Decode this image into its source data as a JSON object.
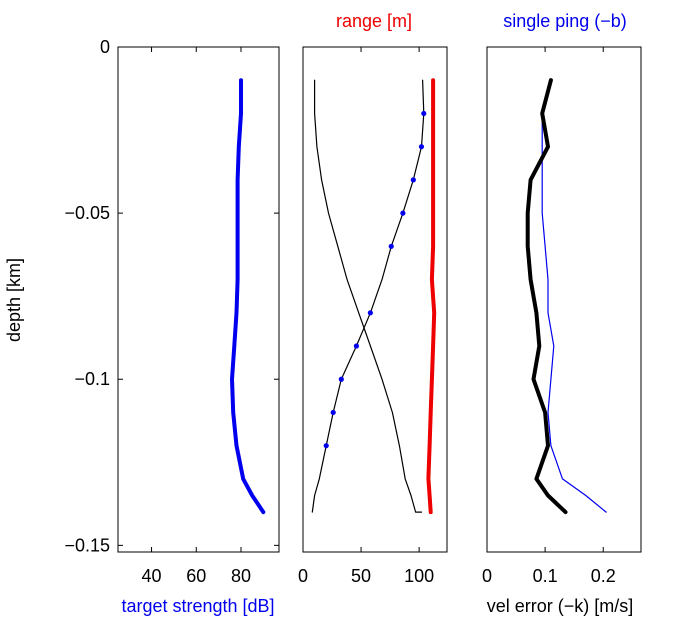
{
  "colors": {
    "blue": "#0000ee",
    "red": "#ee0000",
    "black": "#000000"
  },
  "chart_data": [
    {
      "type": "line",
      "panel": "left",
      "ylabel": "depth [km]",
      "xlabel": "target strength [dB]",
      "xlabel_color": "#0000ee",
      "xlim": [
        25,
        97
      ],
      "ylim": [
        -0.152,
        0
      ],
      "xticks": [
        "40",
        "60",
        "80"
      ],
      "xtick_values": [
        40,
        60,
        80
      ],
      "yticks": [
        "0",
        "−0.05",
        "−0.1",
        "−0.15"
      ],
      "ytick_values": [
        0,
        -0.05,
        -0.1,
        -0.15
      ],
      "series": [
        {
          "color": "#0000ee",
          "width": "thick",
          "x": [
            80,
            80,
            79,
            78.5,
            78.5,
            78.5,
            78.5,
            78,
            77,
            76,
            76.5,
            78,
            81,
            85,
            90
          ],
          "y": [
            -0.01,
            -0.02,
            -0.03,
            -0.04,
            -0.05,
            -0.06,
            -0.07,
            -0.08,
            -0.09,
            -0.1,
            -0.11,
            -0.12,
            -0.13,
            -0.135,
            -0.14
          ]
        }
      ]
    },
    {
      "type": "line",
      "panel": "middle",
      "title": "range [m]",
      "title_color": "#ee0000",
      "xlim": [
        0,
        124
      ],
      "ylim": [
        -0.152,
        0
      ],
      "xticks": [
        "0",
        "50",
        "100"
      ],
      "xtick_values": [
        0,
        50,
        100
      ],
      "series": [
        {
          "color": "#ee0000",
          "width": "thick",
          "x": [
            112,
            112,
            112,
            112,
            112,
            112,
            111,
            113,
            112,
            111,
            110,
            109,
            108,
            109,
            110
          ],
          "y": [
            -0.01,
            -0.02,
            -0.03,
            -0.04,
            -0.05,
            -0.06,
            -0.07,
            -0.08,
            -0.09,
            -0.1,
            -0.11,
            -0.12,
            -0.13,
            -0.135,
            -0.14
          ]
        },
        {
          "color": "#000000",
          "width": "thin",
          "x": [
            10,
            10,
            12,
            16,
            22,
            30,
            38,
            48,
            58,
            68,
            77,
            83,
            88,
            93,
            97,
            102
          ],
          "y": [
            -0.01,
            -0.02,
            -0.03,
            -0.04,
            -0.05,
            -0.06,
            -0.07,
            -0.08,
            -0.09,
            -0.1,
            -0.11,
            -0.12,
            -0.13,
            -0.135,
            -0.14,
            -0.14
          ]
        },
        {
          "color": "#000000",
          "width": "thin",
          "markers": true,
          "marker_color": "#0000ee",
          "x": [
            103,
            104,
            102,
            95,
            86,
            76,
            68,
            58,
            46,
            33,
            26,
            20,
            14,
            10,
            8,
            8
          ],
          "y": [
            -0.01,
            -0.02,
            -0.03,
            -0.04,
            -0.05,
            -0.06,
            -0.07,
            -0.08,
            -0.09,
            -0.1,
            -0.11,
            -0.12,
            -0.13,
            -0.135,
            -0.14,
            -0.14
          ],
          "marker_idx": [
            1,
            2,
            3,
            4,
            5,
            7,
            8,
            9,
            10,
            11
          ]
        }
      ]
    },
    {
      "type": "line",
      "panel": "right",
      "title": "single ping (−b)",
      "title_color": "#0000ee",
      "xlabel": "vel error (−k) [m/s]",
      "xlim": [
        0,
        0.265
      ],
      "ylim": [
        -0.152,
        0
      ],
      "xticks": [
        "0",
        "0.1",
        "0.2"
      ],
      "xtick_values": [
        0,
        0.1,
        0.2
      ],
      "series": [
        {
          "color": "#0000ee",
          "width": "thin",
          "x": [
            0.11,
            0.095,
            0.095,
            0.095,
            0.095,
            0.1,
            0.105,
            0.105,
            0.115,
            0.11,
            0.105,
            0.11,
            0.13,
            0.17,
            0.205
          ],
          "y": [
            -0.01,
            -0.02,
            -0.03,
            -0.04,
            -0.05,
            -0.06,
            -0.07,
            -0.08,
            -0.09,
            -0.1,
            -0.11,
            -0.12,
            -0.13,
            -0.135,
            -0.14
          ]
        },
        {
          "color": "#000000",
          "width": "thick",
          "x": [
            0.11,
            0.095,
            0.105,
            0.075,
            0.07,
            0.07,
            0.075,
            0.085,
            0.09,
            0.08,
            0.1,
            0.105,
            0.085,
            0.105,
            0.135
          ],
          "y": [
            -0.01,
            -0.02,
            -0.03,
            -0.04,
            -0.05,
            -0.06,
            -0.07,
            -0.08,
            -0.09,
            -0.1,
            -0.11,
            -0.12,
            -0.13,
            -0.135,
            -0.14
          ]
        }
      ]
    }
  ]
}
